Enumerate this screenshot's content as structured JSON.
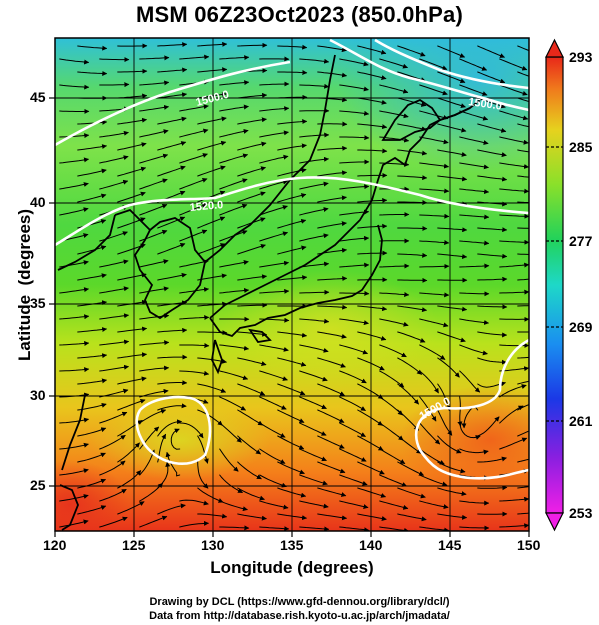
{
  "title": "MSM 06Z23Oct2023 (850.0hPa)",
  "map": {
    "xlabel": "Longitude (degrees)",
    "ylabel": "Latitude  (degrees)",
    "lon_range": [
      120,
      150
    ],
    "lat_range": [
      22.5,
      48
    ],
    "lon_ticks": [
      "120",
      "125",
      "130",
      "135",
      "140",
      "145",
      "150"
    ],
    "lat_ticks": [
      "25",
      "30",
      "35",
      "40",
      "45"
    ],
    "contour_labels": [
      "1500.0",
      "1520.0",
      "1500.0",
      "1500.0"
    ]
  },
  "colorbar": {
    "min": 253,
    "max": 293,
    "ticks": [
      "293",
      "285",
      "277",
      "269",
      "261",
      "253"
    ]
  },
  "footer": {
    "credit1": "Drawing by DCL (https://www.gfd-dennou.org/library/dcl/)",
    "credit2": "Data from http://database.rish.kyoto-u.ac.jp/arch/jmadata/"
  }
}
